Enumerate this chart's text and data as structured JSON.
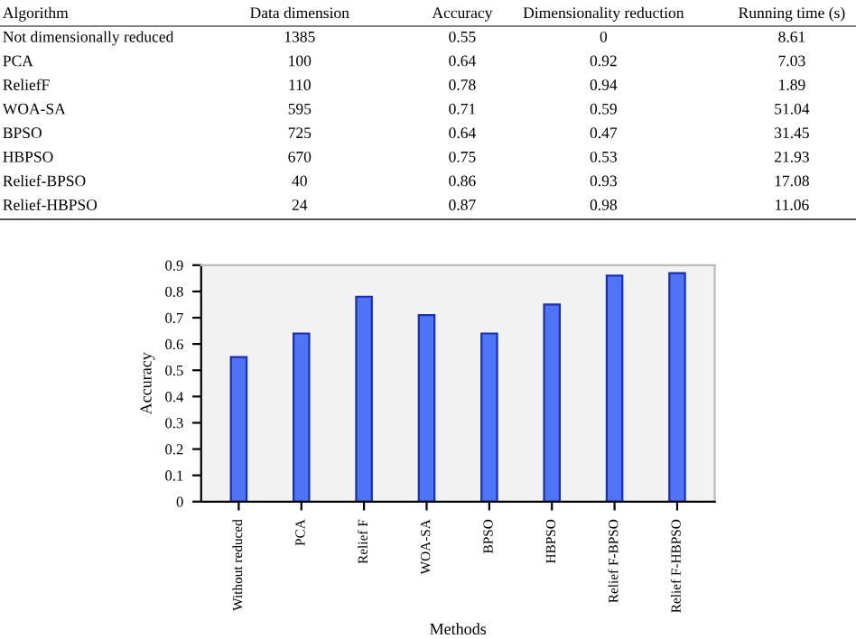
{
  "chart_data": [
    {
      "type": "other",
      "categories": [
        "Algorithm",
        "Data dimension",
        "Accuracy",
        "Dimensionality reduction",
        "Running time (s)"
      ],
      "annotations": [
        "Not dimensionally reduced",
        "1385",
        "0.55",
        "0",
        "8.61",
        "PCA",
        "100",
        "0.64",
        "0.92",
        "7.03",
        "ReliefF",
        "110",
        "0.78",
        "0.94",
        "1.89",
        "WOA-SA",
        "595",
        "0.71",
        "0.59",
        "51.04",
        "BPSO",
        "725",
        "0.64",
        "0.47",
        "31.45",
        "HBPSO",
        "670",
        "0.75",
        "0.53",
        "21.93",
        "Relief-BPSO",
        "40",
        "0.86",
        "0.93",
        "17.08",
        "Relief-HBPSO",
        "24",
        "0.87",
        "0.98",
        "11.06"
      ]
    },
    {
      "type": "bar",
      "xlabel": "Methods",
      "ylabel": "Accuracy",
      "categories": [
        "Without reduced",
        "PCA",
        "Relief F",
        "WOA-SA",
        "BPSO",
        "HBPSO",
        "Relief F-BPSO",
        "Relief F-HBPSO"
      ],
      "values": [
        0.55,
        0.64,
        0.78,
        0.71,
        0.64,
        0.75,
        0.86,
        0.87
      ],
      "color": "#4f74f5",
      "ylim": [
        0,
        0.9
      ],
      "yticks": [
        0,
        0.1,
        0.2,
        0.3,
        0.4,
        0.5,
        0.6,
        0.7,
        0.8,
        0.9
      ],
      "grid": false
    }
  ]
}
